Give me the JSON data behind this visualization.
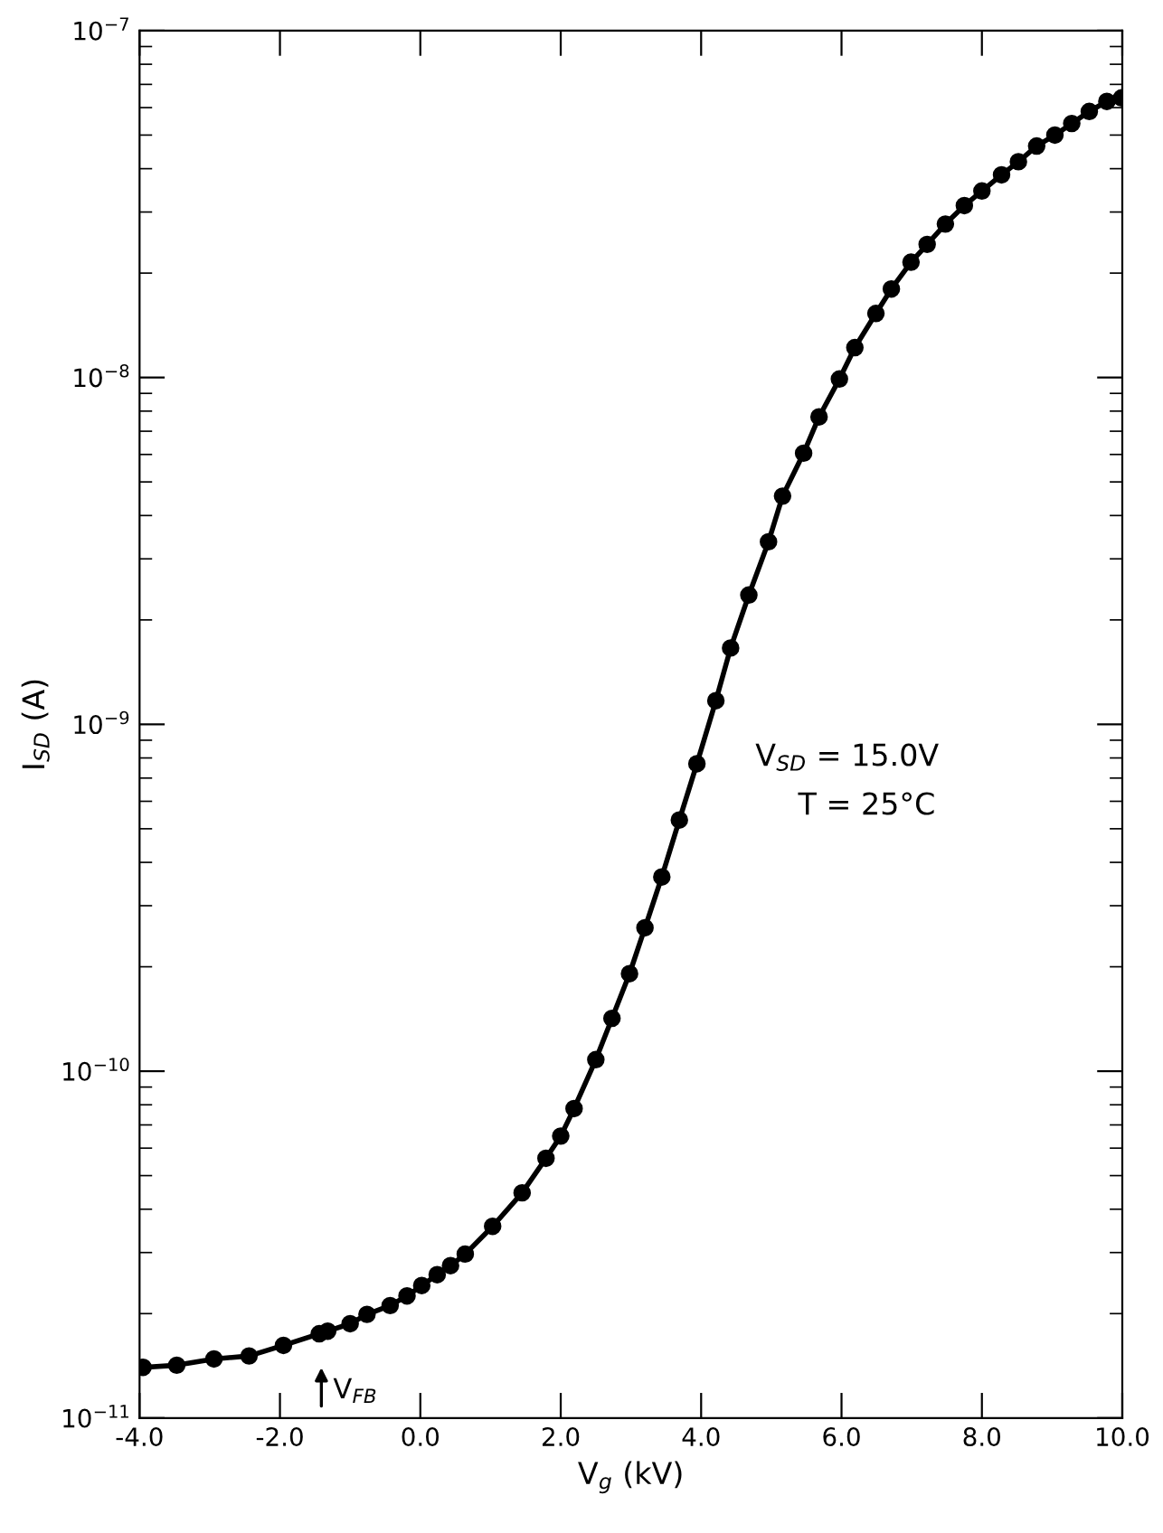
{
  "chart_data": {
    "type": "line",
    "xlabel": "V$_{g}$ (kV)",
    "ylabel": "I$_{SD}$ (A)",
    "log": "y",
    "grid": false,
    "marker": "circle",
    "line_style": "solid",
    "xlim": [
      -4.0,
      10.0
    ],
    "ylim": [
      1e-11,
      1e-07
    ],
    "xticks": [
      {
        "value": -4,
        "label": "-4.0"
      },
      {
        "value": -2,
        "label": "-2.0"
      },
      {
        "value": 0,
        "label": "0.0"
      },
      {
        "value": 2,
        "label": "2.0"
      },
      {
        "value": 4,
        "label": "4.0"
      },
      {
        "value": 6,
        "label": "6.0"
      },
      {
        "value": 8,
        "label": "8.0"
      },
      {
        "value": 10,
        "label": "10.0"
      }
    ],
    "yticks": [
      {
        "value": 1e-11,
        "label": "10$^{−11}$"
      },
      {
        "value": 1e-10,
        "label": "10$^{−10}$"
      },
      {
        "value": 1e-09,
        "label": "10$^{−9}$"
      },
      {
        "value": 1e-08,
        "label": "10$^{−8}$"
      },
      {
        "value": 1e-07,
        "label": "10$^{−7}$"
      }
    ],
    "annotations": [
      "V$_{SD}$ = 15.0V",
      "T = 25°C",
      "V$_{FB}$"
    ],
    "series": [
      {
        "color": "#000000",
        "x": [
          -3.95,
          -3.47,
          -2.94,
          -2.44,
          -1.95,
          -1.44,
          -1.32,
          -1.0,
          -0.76,
          -0.43,
          -0.19,
          0.02,
          0.24,
          0.43,
          0.64,
          1.03,
          1.45,
          1.79,
          2.0,
          2.19,
          2.5,
          2.73,
          2.98,
          3.2,
          3.44,
          3.69,
          3.94,
          4.21,
          4.42,
          4.68,
          4.96,
          5.16,
          5.46,
          5.68,
          5.97,
          6.19,
          6.49,
          6.71,
          6.99,
          7.22,
          7.48,
          7.75,
          8.0,
          8.28,
          8.52,
          8.78,
          9.04,
          9.28,
          9.53,
          9.78,
          9.99
        ],
        "values": [
          1.4e-11,
          1.42e-11,
          1.48e-11,
          1.51e-11,
          1.62e-11,
          1.75e-11,
          1.78e-11,
          1.87e-11,
          1.99e-11,
          2.11e-11,
          2.25e-11,
          2.41e-11,
          2.59e-11,
          2.75e-11,
          2.97e-11,
          3.57e-11,
          4.46e-11,
          5.61e-11,
          6.5e-11,
          7.8e-11,
          1.08e-10,
          1.42e-10,
          1.91e-10,
          2.59e-10,
          3.63e-10,
          5.3e-10,
          7.7e-10,
          1.17e-09,
          1.66e-09,
          2.36e-09,
          3.36e-09,
          4.55e-09,
          6.05e-09,
          7.7e-09,
          9.9e-09,
          1.22e-08,
          1.53e-08,
          1.8e-08,
          2.15e-08,
          2.42e-08,
          2.77e-08,
          3.13e-08,
          3.45e-08,
          3.84e-08,
          4.19e-08,
          4.65e-08,
          5e-08,
          5.4e-08,
          5.85e-08,
          6.25e-08,
          6.4e-08
        ]
      }
    ]
  }
}
